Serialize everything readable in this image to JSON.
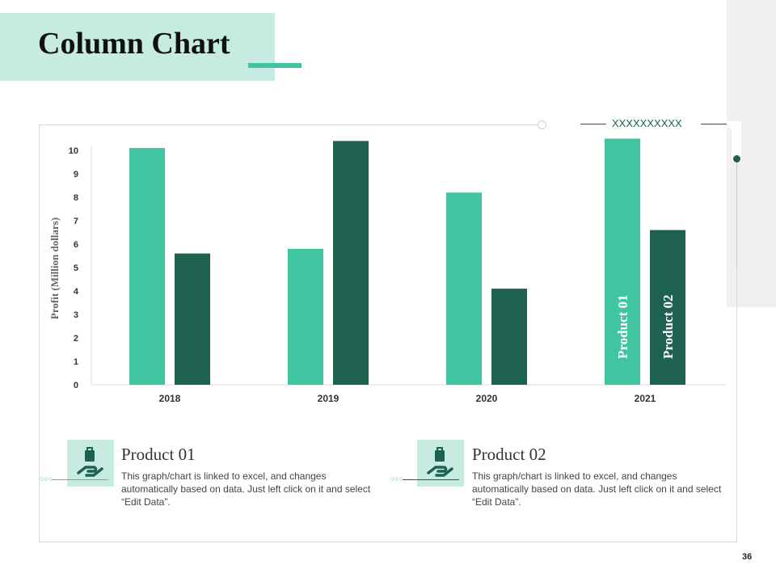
{
  "slide": {
    "title": "Column Chart",
    "page_number": "36",
    "decor_marks": "XXXXXXXXXX"
  },
  "colors": {
    "product_01": "#40c4a1",
    "product_02": "#1e6150",
    "title_bg": "#c6ece2"
  },
  "chart_data": {
    "type": "bar",
    "categories": [
      "2018",
      "2019",
      "2020",
      "2021"
    ],
    "series": [
      {
        "name": "Product 01",
        "values": [
          10.1,
          5.8,
          8.2,
          10.5
        ]
      },
      {
        "name": "Product 02",
        "values": [
          5.6,
          10.4,
          4.1,
          6.6
        ]
      }
    ],
    "y_ticks": [
      "0",
      "1",
      "2",
      "3",
      "4",
      "5",
      "6",
      "7",
      "8",
      "9",
      "10"
    ],
    "ylabel": "Profit  (Million dollars)",
    "xlabel": "",
    "ylim": [
      0,
      10.5
    ],
    "legend": "in-bar labels on 2021 columns"
  },
  "products": [
    {
      "title": "Product 01",
      "description": "This graph/chart is linked to excel, and changes automatically based on data. Just left click on it and select “Edit Data”.",
      "icon": "hand-holding-bag-icon"
    },
    {
      "title": "Product 02",
      "description": "This graph/chart is linked to excel, and changes automatically based on data. Just left click on it and select “Edit Data”.",
      "icon": "hand-holding-bag-icon"
    }
  ]
}
